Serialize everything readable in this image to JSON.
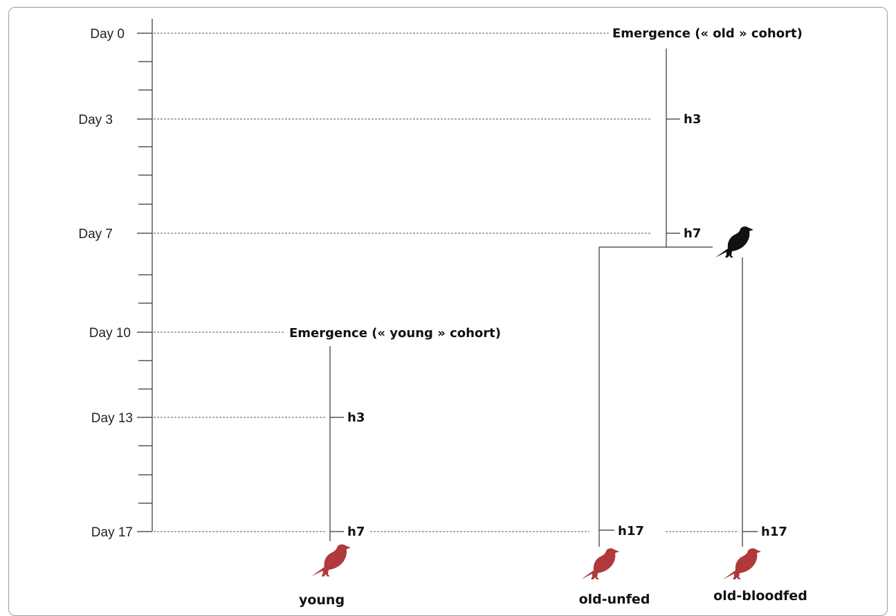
{
  "timeline": {
    "day_labels": [
      "Day 0",
      "Day 3",
      "Day 7",
      "Day 10",
      "Day 13",
      "Day 17"
    ]
  },
  "cohorts": {
    "old": {
      "emergence_label": "Emergence (« old » cohort)",
      "h3": "h3",
      "h7": "h7"
    },
    "young": {
      "emergence_label": "Emergence (« young » cohort)",
      "h3": "h3",
      "h7": "h7"
    }
  },
  "end_labels": {
    "old_unfed_h": "h17",
    "old_bloodfed_h": "h17"
  },
  "groups": {
    "young": "young",
    "old_unfed": "old-unfed",
    "old_bloodfed": "old-bloodfed"
  },
  "colors": {
    "bird_red": "#b03a3a",
    "bird_black": "#111111"
  },
  "icons": {
    "bird": "bird-icon"
  }
}
